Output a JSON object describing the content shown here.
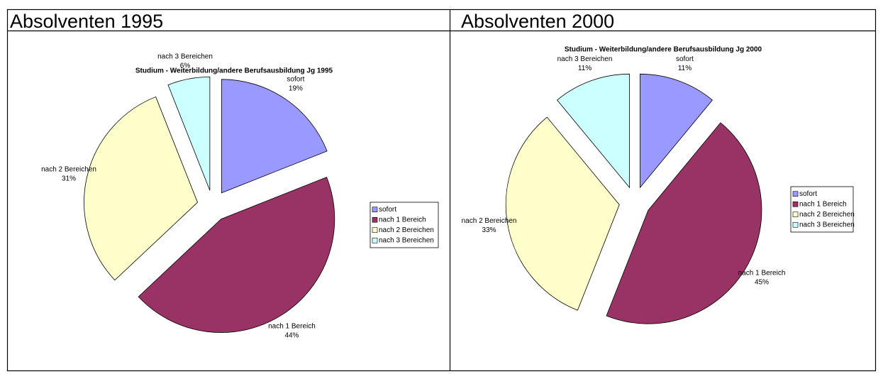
{
  "headers": [
    "Absolventen 1995",
    "Absolventen 2000"
  ],
  "chart_data": [
    {
      "type": "pie",
      "title": "Studium - Weiterbildung/andere Berufsausbildung Jg 1995",
      "categories": [
        "sofort",
        "nach 1 Bereich",
        "nach 2 Bereichen",
        "nach 3 Bereichen"
      ],
      "values": [
        19,
        44,
        31,
        6
      ],
      "value_labels": [
        "19%",
        "44%",
        "31%",
        "6%"
      ],
      "colors": [
        "#9999ff",
        "#993366",
        "#ffffcc",
        "#ccffff"
      ],
      "legend": "right"
    },
    {
      "type": "pie",
      "title": "Studium - Weiterbildung/andere Berufsausbildung Jg 2000",
      "categories": [
        "sofort",
        "nach 1 Bereich",
        "nach 2 Bereichen",
        "nach 3 Bereichen"
      ],
      "values": [
        11,
        45,
        33,
        11
      ],
      "value_labels": [
        "11%",
        "45%",
        "33%",
        "11%"
      ],
      "colors": [
        "#9999ff",
        "#993366",
        "#ffffcc",
        "#ccffff"
      ],
      "legend": "right"
    }
  ]
}
